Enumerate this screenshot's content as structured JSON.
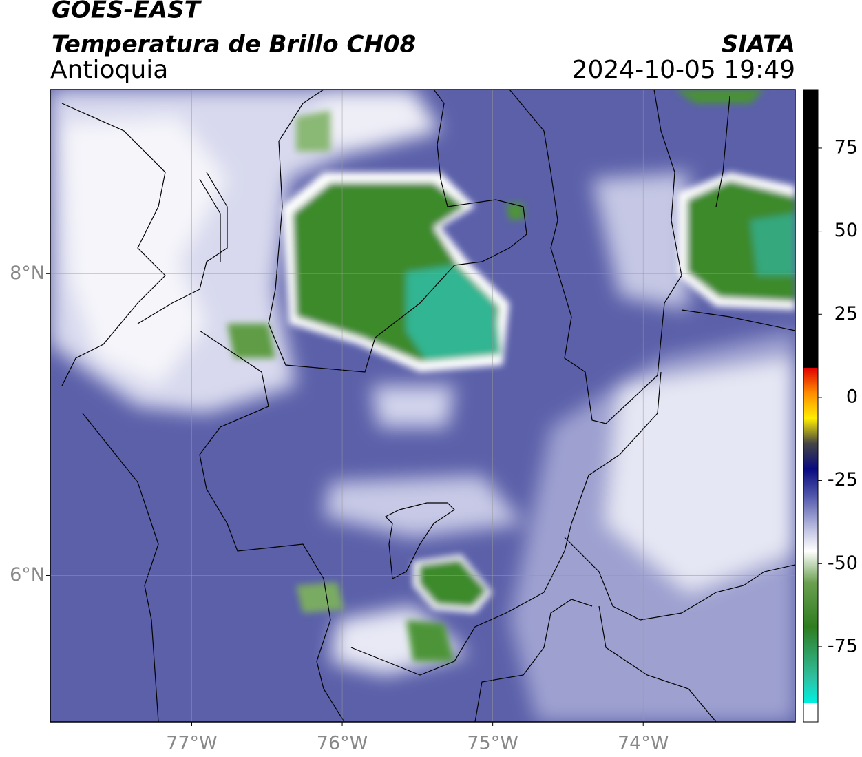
{
  "header": {
    "title": "GOES-EAST",
    "subtitle": "Temperatura de Brillo CH08",
    "region": "Antioquia",
    "source": "SIATA",
    "timestamp": "2024-10-05 19:49"
  },
  "map": {
    "xlim": [
      -77.94,
      -72.99
    ],
    "ylim": [
      5.03,
      9.22
    ],
    "xticks": [
      {
        "value": -77,
        "label": "77°W"
      },
      {
        "value": -76,
        "label": "76°W"
      },
      {
        "value": -75,
        "label": "75°W"
      },
      {
        "value": -74,
        "label": "74°W"
      }
    ],
    "yticks": [
      {
        "value": 6,
        "label": "6°N"
      },
      {
        "value": 8,
        "label": "8°N"
      }
    ],
    "grid": true
  },
  "colorbar": {
    "ylim": [
      -97.6,
      92.6
    ],
    "yticks": [
      -75,
      -50,
      -25,
      0,
      25,
      50,
      75
    ]
  }
}
